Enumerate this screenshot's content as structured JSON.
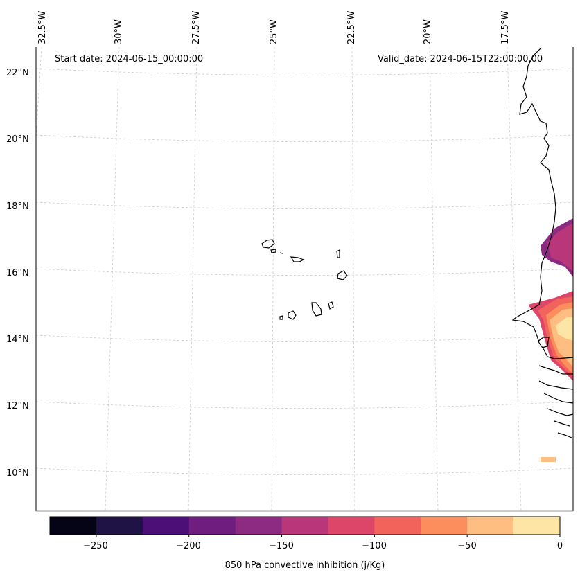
{
  "map": {
    "start_date": "Start date: 2024-06-15_00:00:00",
    "valid_date": "Valid_date: 2024-06-15T22:00:00.00",
    "lat_labels": [
      "22°N",
      "20°N",
      "18°N",
      "16°N",
      "14°N",
      "12°N",
      "10°N"
    ],
    "lon_labels": [
      "32.5°W",
      "30°W",
      "27.5°W",
      "25°W",
      "22.5°W",
      "20°W",
      "17.5°W"
    ],
    "gridline_color": "#cccccc",
    "coastline_color": "#000000"
  },
  "colorbar": {
    "label": "850 hPa convective inhibition (j/Kg)",
    "tick_labels": [
      "−250",
      "−200",
      "−150",
      "−100",
      "−50",
      "0"
    ],
    "levels": [
      -275,
      -250,
      -225,
      -200,
      -175,
      -150,
      -125,
      -100,
      -75,
      -50,
      -25,
      0
    ],
    "colors": [
      "#050417",
      "#1f1245",
      "#4b0f77",
      "#701d80",
      "#8d2a81",
      "#b83679",
      "#dd4668",
      "#f2635c",
      "#fc8d5d",
      "#febd81",
      "#fde6a5"
    ]
  }
}
